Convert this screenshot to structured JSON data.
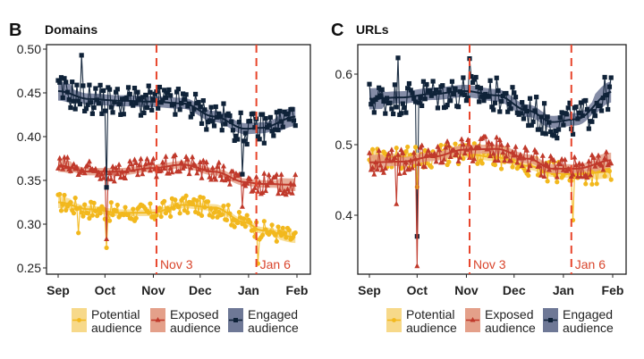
{
  "legend": [
    {
      "key": "potential",
      "line1": "Potential",
      "line2": "audience",
      "color": "#f2b81d",
      "band": "#f7d98a"
    },
    {
      "key": "exposed",
      "line1": "Exposed",
      "line2": "audience",
      "color": "#c0392b",
      "band": "#e4a08a"
    },
    {
      "key": "engaged",
      "line1": "Engaged",
      "line2": "audience",
      "color": "#0f2238",
      "band": "#6e7896"
    }
  ],
  "chart_data": [
    {
      "type": "line",
      "panel": "B",
      "title": "Domains",
      "xlabel": "",
      "ylabel": "",
      "x_ticks": [
        "Sep",
        "Oct",
        "Nov",
        "Dec",
        "Jan",
        "Feb"
      ],
      "y_ticks": [
        "0.25",
        "0.30",
        "0.35",
        "0.40",
        "0.45",
        "0.50"
      ],
      "ylim": [
        0.245,
        0.5
      ],
      "xlim_days": [
        -8,
        160
      ],
      "annotations": [
        {
          "label": "Nov 3",
          "day": 63,
          "style": "dashed-vertical",
          "color": "#e8452c"
        },
        {
          "label": "Jan 6",
          "day": 127,
          "style": "dashed-vertical",
          "color": "#e8452c"
        }
      ],
      "series": [
        {
          "name": "Engaged audience",
          "key": "engaged",
          "marker": "square",
          "trend_days": [
            0,
            20,
            40,
            60,
            80,
            100,
            120,
            130,
            153
          ],
          "trend": [
            0.452,
            0.443,
            0.441,
            0.44,
            0.438,
            0.423,
            0.409,
            0.41,
            0.423
          ],
          "noise": 0.018,
          "outliers": [
            {
              "day": 31,
              "value": 0.342
            },
            {
              "day": 15,
              "value": 0.493
            },
            {
              "day": 118,
              "value": 0.357
            }
          ]
        },
        {
          "name": "Exposed audience",
          "key": "exposed",
          "marker": "triangle",
          "trend_days": [
            0,
            20,
            40,
            60,
            80,
            100,
            120,
            130,
            153
          ],
          "trend": [
            0.367,
            0.36,
            0.36,
            0.364,
            0.368,
            0.36,
            0.348,
            0.346,
            0.345
          ],
          "noise": 0.012,
          "outliers": [
            {
              "day": 31,
              "value": 0.283
            },
            {
              "day": 118,
              "value": 0.32
            }
          ]
        },
        {
          "name": "Potential audience",
          "key": "potential",
          "marker": "circle",
          "trend_days": [
            0,
            20,
            40,
            60,
            80,
            100,
            120,
            130,
            153
          ],
          "trend": [
            0.325,
            0.317,
            0.313,
            0.313,
            0.322,
            0.319,
            0.302,
            0.293,
            0.285
          ],
          "noise": 0.011,
          "outliers": [
            {
              "day": 31,
              "value": 0.273
            },
            {
              "day": 128,
              "value": 0.255
            },
            {
              "day": 13,
              "value": 0.29
            }
          ]
        }
      ]
    },
    {
      "type": "line",
      "panel": "C",
      "title": "URLs",
      "xlabel": "",
      "ylabel": "",
      "x_ticks": [
        "Sep",
        "Oct",
        "Nov",
        "Dec",
        "Jan",
        "Feb"
      ],
      "y_ticks": [
        "0.4",
        "0.5",
        "0.6"
      ],
      "ylim": [
        0.31,
        0.64
      ],
      "xlim_days": [
        -8,
        160
      ],
      "annotations": [
        {
          "label": "Nov 3",
          "day": 63,
          "style": "dashed-vertical",
          "color": "#e8452c"
        },
        {
          "label": "Jan 6",
          "day": 127,
          "style": "dashed-vertical",
          "color": "#e8452c"
        }
      ],
      "series": [
        {
          "name": "Engaged audience",
          "key": "engaged",
          "marker": "square",
          "trend_days": [
            0,
            20,
            40,
            60,
            80,
            100,
            115,
            130,
            153
          ],
          "trend": [
            0.565,
            0.567,
            0.572,
            0.576,
            0.57,
            0.548,
            0.532,
            0.536,
            0.575
          ],
          "noise": 0.025,
          "outliers": [
            {
              "day": 30,
              "value": 0.37
            },
            {
              "day": 18,
              "value": 0.623
            },
            {
              "day": 63,
              "value": 0.622
            }
          ]
        },
        {
          "name": "Exposed audience",
          "key": "exposed",
          "marker": "triangle",
          "trend_days": [
            0,
            20,
            40,
            60,
            80,
            100,
            115,
            130,
            153
          ],
          "trend": [
            0.475,
            0.476,
            0.483,
            0.493,
            0.494,
            0.48,
            0.466,
            0.466,
            0.478
          ],
          "noise": 0.018,
          "outliers": [
            {
              "day": 30,
              "value": 0.328
            },
            {
              "day": 17,
              "value": 0.416
            }
          ]
        },
        {
          "name": "Potential audience",
          "key": "potential",
          "marker": "circle",
          "trend_days": [
            0,
            20,
            40,
            60,
            80,
            100,
            115,
            130,
            153
          ],
          "trend": [
            0.482,
            0.482,
            0.484,
            0.487,
            0.482,
            0.47,
            0.46,
            0.458,
            0.462
          ],
          "noise": 0.016,
          "outliers": [
            {
              "day": 128,
              "value": 0.393
            },
            {
              "day": 30,
              "value": 0.44
            }
          ]
        }
      ]
    }
  ]
}
